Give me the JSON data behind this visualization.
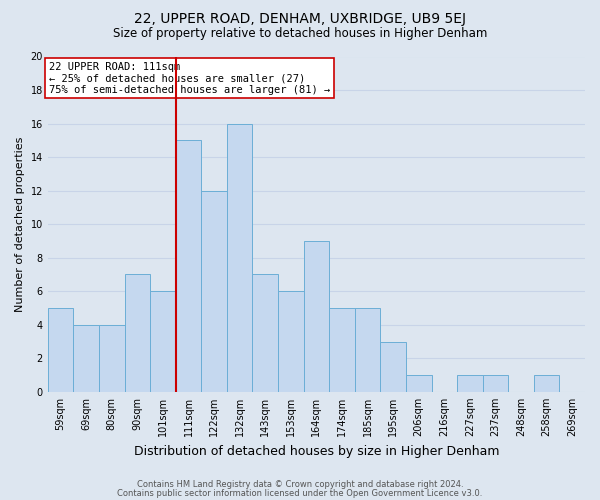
{
  "title": "22, UPPER ROAD, DENHAM, UXBRIDGE, UB9 5EJ",
  "subtitle": "Size of property relative to detached houses in Higher Denham",
  "xlabel": "Distribution of detached houses by size in Higher Denham",
  "ylabel": "Number of detached properties",
  "footer_line1": "Contains HM Land Registry data © Crown copyright and database right 2024.",
  "footer_line2": "Contains public sector information licensed under the Open Government Licence v3.0.",
  "bin_labels": [
    "59sqm",
    "69sqm",
    "80sqm",
    "90sqm",
    "101sqm",
    "111sqm",
    "122sqm",
    "132sqm",
    "143sqm",
    "153sqm",
    "164sqm",
    "174sqm",
    "185sqm",
    "195sqm",
    "206sqm",
    "216sqm",
    "227sqm",
    "237sqm",
    "248sqm",
    "258sqm",
    "269sqm"
  ],
  "counts": [
    5,
    4,
    4,
    7,
    6,
    15,
    12,
    16,
    7,
    6,
    9,
    5,
    5,
    3,
    1,
    0,
    1,
    1,
    0,
    1,
    0
  ],
  "bar_color": "#c5d8ef",
  "bar_edge_color": "#6baed6",
  "vline_x_index": 5,
  "vline_color": "#cc0000",
  "annotation_line1": "22 UPPER ROAD: 111sqm",
  "annotation_line2": "← 25% of detached houses are smaller (27)",
  "annotation_line3": "75% of semi-detached houses are larger (81) →",
  "annotation_box_color": "#ffffff",
  "annotation_box_edge_color": "#cc0000",
  "ylim": [
    0,
    20
  ],
  "yticks": [
    0,
    2,
    4,
    6,
    8,
    10,
    12,
    14,
    16,
    18,
    20
  ],
  "grid_color": "#c8d4e8",
  "background_color": "#dde6f0",
  "plot_bg_color": "#dde6f0",
  "title_fontsize": 10,
  "subtitle_fontsize": 8.5,
  "ylabel_fontsize": 8,
  "xlabel_fontsize": 9,
  "tick_fontsize": 7,
  "footer_fontsize": 6,
  "footer_color": "#555555"
}
